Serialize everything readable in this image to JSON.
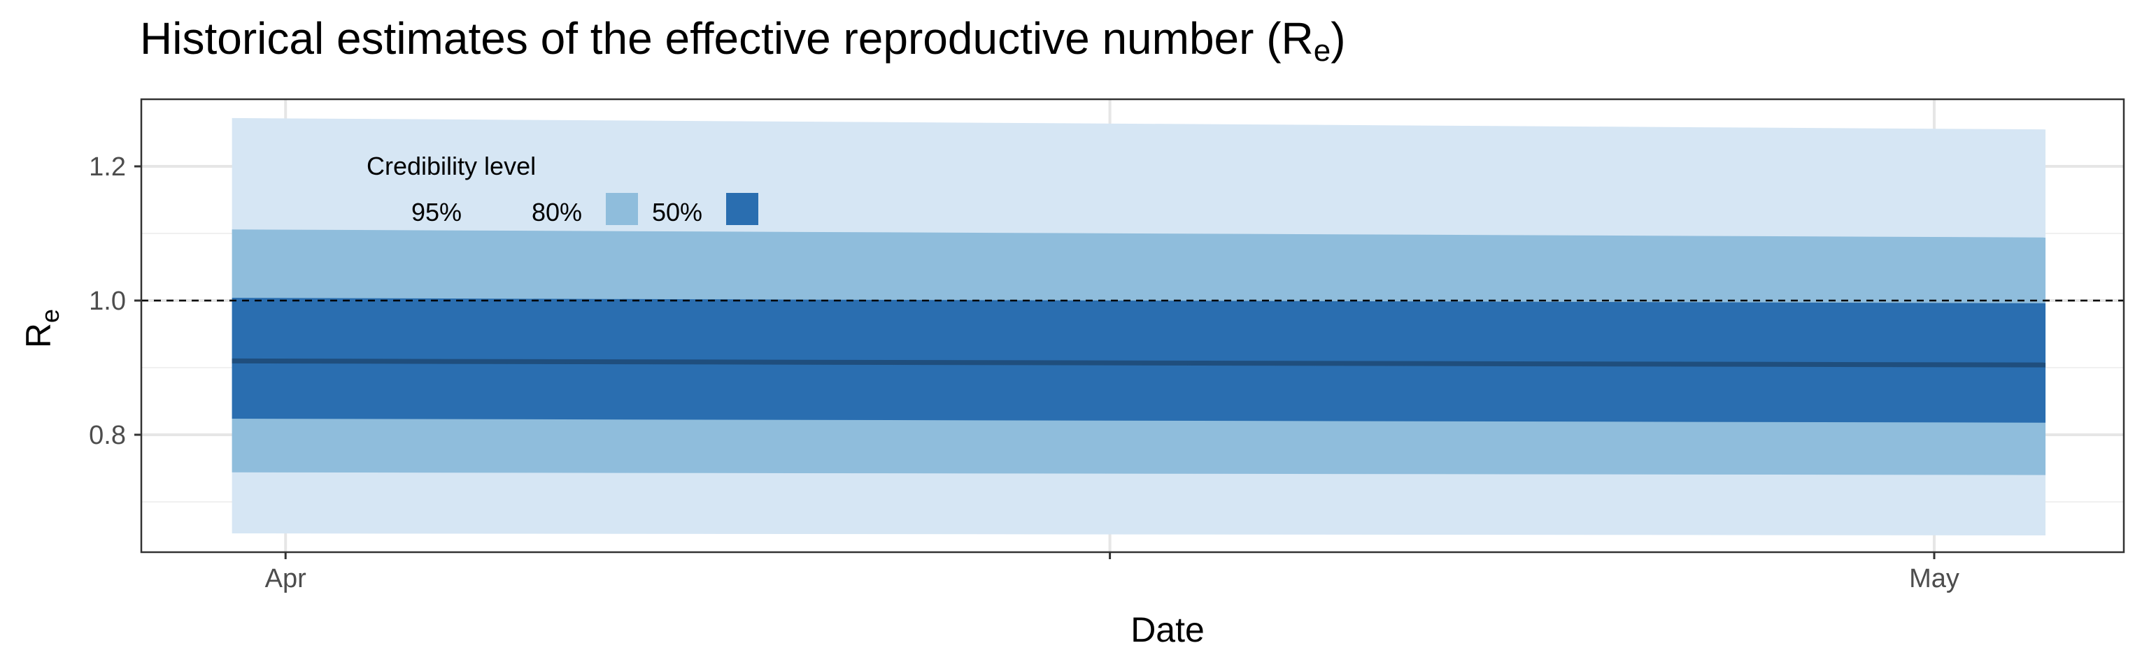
{
  "chart_data": {
    "type": "area",
    "title": "Historical estimates of the effective reproductive number (R",
    "title_subscript": "e",
    "title_suffix": ")",
    "xlabel": "Date",
    "ylabel": "R",
    "ylabel_subscript": "e",
    "x_tick_labels": [
      "Apr",
      "May"
    ],
    "y_tick_labels": [
      "0.8",
      "1.0",
      "1.2"
    ],
    "y_ticks": [
      0.8,
      1.0,
      1.2
    ],
    "ylim": [
      0.625,
      1.3
    ],
    "xlim_days": [
      -3.5,
      44.6
    ],
    "x_tick_days": [
      0,
      20,
      40
    ],
    "reference_line": 1.0,
    "grid": true,
    "legend": {
      "title": "Credibility level",
      "placement": "top-left",
      "entries": [
        {
          "label": "95%",
          "color": "#d6e6f4"
        },
        {
          "label": "80%",
          "color": "#8fbddc"
        },
        {
          "label": "50%",
          "color": "#2a6eb0"
        }
      ]
    },
    "dates": [
      "Apr",
      "May"
    ],
    "x_days": [
      -1.3,
      42.7
    ],
    "median": [
      0.91,
      0.904
    ],
    "bands": [
      {
        "level": "95%",
        "color": "#d6e6f4",
        "lower": [
          0.653,
          0.65
        ],
        "upper": [
          1.272,
          1.255
        ]
      },
      {
        "level": "80%",
        "color": "#8fbddc",
        "lower": [
          0.744,
          0.74
        ],
        "upper": [
          1.106,
          1.094
        ]
      },
      {
        "level": "50%",
        "color": "#2a6eb0",
        "lower": [
          0.824,
          0.818
        ],
        "upper": [
          1.004,
          0.996
        ]
      }
    ],
    "median_color": "#1f4e7d"
  }
}
